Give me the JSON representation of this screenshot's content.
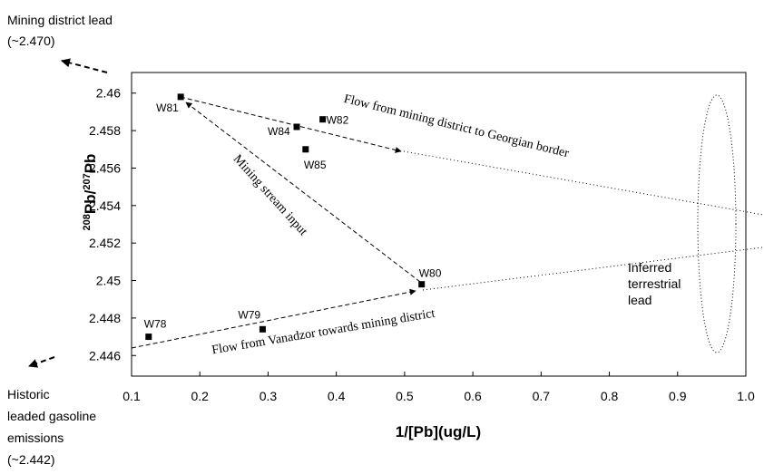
{
  "chart_data": {
    "type": "scatter",
    "xlabel": "1/[Pb](ug/L)",
    "ylabel_parts": [
      "208",
      "Pb/",
      "207",
      "Pb"
    ],
    "x": [
      0.125,
      0.292,
      0.525,
      0.172,
      0.38,
      0.342,
      0.355
    ],
    "values": [
      2.447,
      2.4474,
      2.4498,
      2.4598,
      2.4586,
      2.4582,
      2.457
    ],
    "labels": [
      "W78",
      "W79",
      "W80",
      "W81",
      "W82",
      "W84",
      "W85"
    ],
    "color": "#000000",
    "xlim": [
      0.1,
      1.0
    ],
    "ylim": [
      2.4449,
      2.4611
    ],
    "xticks": [
      0.1,
      0.2,
      0.3,
      0.4,
      0.5,
      0.6,
      0.7,
      0.8,
      0.9,
      {
        "value": 1,
        "label": "1.0"
      }
    ],
    "yticks": [
      2.446,
      2.448,
      2.45,
      2.452,
      2.454,
      2.456,
      2.458,
      2.46
    ],
    "annotations": {
      "mining_lead": [
        "Mining district lead",
        "(~2.470)"
      ],
      "gasoline": [
        "Historic",
        "leaded gasoline",
        "emissions",
        "(~2.442)"
      ],
      "terrestrial": [
        "Inferred",
        "terrestrial",
        "lead"
      ],
      "flow_georgia": "Flow from mining district to Georgian border",
      "stream": "Mining stream input",
      "flow_vanadzor": "Flow from Vanadzor towards mining district"
    }
  }
}
